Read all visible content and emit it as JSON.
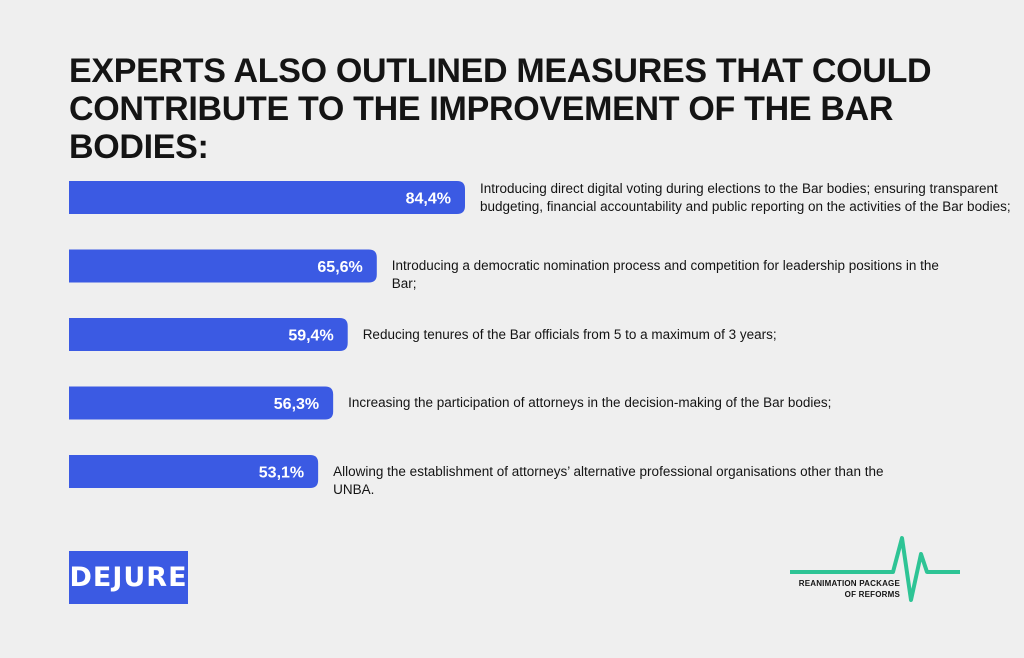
{
  "title_lines": [
    "EXPERTS ALSO OUTLINED MEASURES THAT COULD",
    "CONTRIBUTE TO THE IMPROVEMENT OF THE BAR BODIES:"
  ],
  "chart_data": {
    "type": "bar",
    "orientation": "horizontal",
    "title": "EXPERTS ALSO OUTLINED MEASURES THAT COULD CONTRIBUTE TO THE IMPROVEMENT OF THE BAR BODIES:",
    "values": [
      84.4,
      65.6,
      59.4,
      56.3,
      53.1
    ],
    "value_labels": [
      "84,4%",
      "65,6%",
      "59,4%",
      "56,3%",
      "53,1%"
    ],
    "descriptions": [
      [
        "Introducing direct digital voting during elections to the Bar bodies; ensuring transparent",
        "budgeting, financial accountability and public reporting on the activities of the Bar bodies;"
      ],
      [
        "Introducing a democratic nomination process and competition for leadership positions in the Bar;"
      ],
      [
        "Reducing tenures of the Bar officials from 5 to a maximum of 3 years;"
      ],
      [
        "Increasing the participation of attorneys in the decision-making of the Bar bodies;"
      ],
      [
        "Allowing the establishment of attorneys’ alternative professional organisations other than the UNBA."
      ]
    ],
    "bar_color": "#3b5ae3",
    "grid": false,
    "legend": "none"
  },
  "logos": {
    "dejure": "DEJURE",
    "dejure_color": "#3b5ae3",
    "reanimation_lines": [
      "REANIMATION PACKAGE",
      "OF REFORMS"
    ],
    "pulse_color": "#2ec495"
  }
}
